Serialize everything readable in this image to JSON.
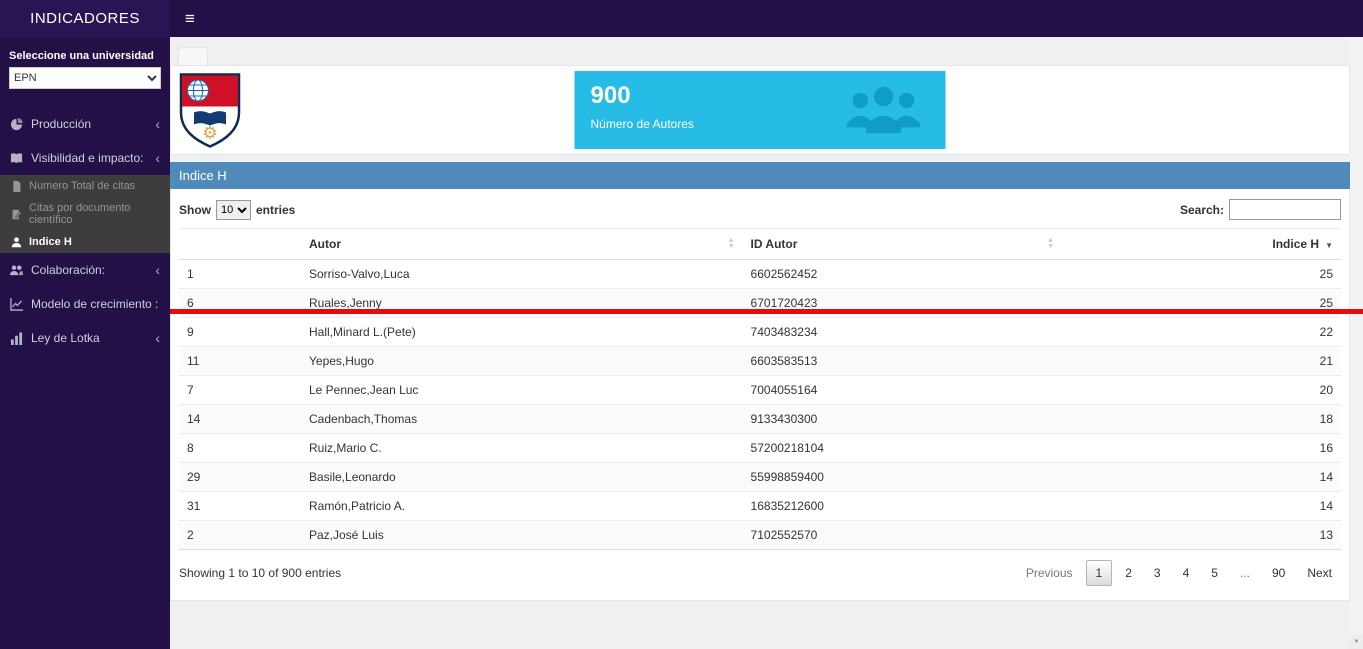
{
  "app": {
    "title": "INDICADORES"
  },
  "sidebar": {
    "select_label": "Seleccione una universidad",
    "university_select": {
      "value": "EPN"
    },
    "items": [
      {
        "label": "Producción",
        "has_children": true
      },
      {
        "label": "Visibilidad e impacto:",
        "has_children": true
      },
      {
        "label": "Colaboración:",
        "has_children": true
      },
      {
        "label": "Modelo de crecimiento :",
        "has_children": false
      },
      {
        "label": "Ley de Lotka",
        "has_children": true
      }
    ],
    "submenu": [
      {
        "label": "Numero Total de citas",
        "active": false
      },
      {
        "label": "Citas por documento científico",
        "active": false
      },
      {
        "label": "Indice H",
        "active": true
      }
    ]
  },
  "stats": {
    "value": "900",
    "label": "Número de Autores"
  },
  "panel": {
    "title": "Indice H"
  },
  "table_controls": {
    "show_label": "Show",
    "entries_label": "entries",
    "page_length": "10",
    "search_label": "Search:",
    "search_value": ""
  },
  "table": {
    "headers": {
      "index": "",
      "autor": "Autor",
      "id_autor": "ID Autor",
      "indice_h": "Indice H"
    },
    "sorted_by": "indice_h",
    "sort_direction": "desc",
    "rows": [
      {
        "index": "1",
        "autor": "Sorriso-Valvo,Luca",
        "id": "6602562452",
        "h": "25"
      },
      {
        "index": "6",
        "autor": "Ruales,Jenny",
        "id": "6701720423",
        "h": "25"
      },
      {
        "index": "9",
        "autor": "Hall,Minard L.(Pete)",
        "id": "7403483234",
        "h": "22"
      },
      {
        "index": "11",
        "autor": "Yepes,Hugo",
        "id": "6603583513",
        "h": "21"
      },
      {
        "index": "7",
        "autor": "Le Pennec,Jean Luc",
        "id": "7004055164",
        "h": "20"
      },
      {
        "index": "14",
        "autor": "Cadenbach,Thomas",
        "id": "9133430300",
        "h": "18"
      },
      {
        "index": "8",
        "autor": "Ruiz,Mario C.",
        "id": "57200218104",
        "h": "16"
      },
      {
        "index": "29",
        "autor": "Basile,Leonardo",
        "id": "55998859400",
        "h": "14"
      },
      {
        "index": "31",
        "autor": "Ramón,Patricio A.",
        "id": "16835212600",
        "h": "14"
      },
      {
        "index": "2",
        "autor": "Paz,José Luis",
        "id": "7102552570",
        "h": "13"
      }
    ]
  },
  "table_footer": {
    "info": "Showing 1 to 10 of 900 entries",
    "pagination": {
      "previous": "Previous",
      "pages": [
        "1",
        "2",
        "3",
        "4",
        "5",
        "...",
        "90"
      ],
      "next": "Next",
      "active": "1"
    }
  },
  "colors": {
    "sidebar_bg": "#221046",
    "accent_cyan": "#27bce6",
    "panel_header_blue": "#4f8aba",
    "highlight_red": "#e60c0c"
  }
}
